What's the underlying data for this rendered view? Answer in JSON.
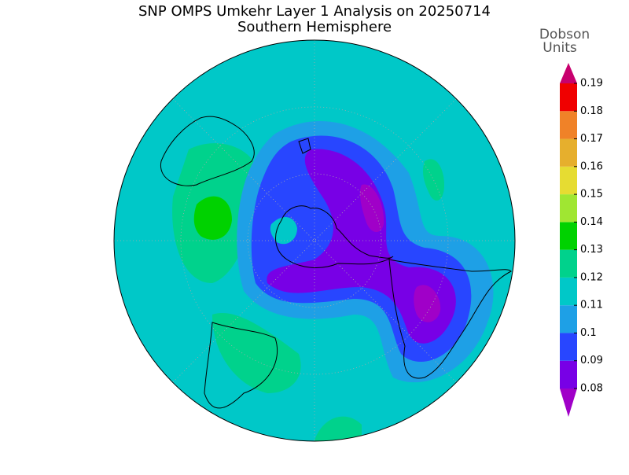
{
  "title": "SNP OMPS Umkehr Layer 1 Analysis on 20250714",
  "subtitle": "Southern Hemisphere",
  "colorbar": {
    "label_lines": [
      "Dobson",
      "Units"
    ],
    "ticks": [
      0.08,
      0.09,
      0.1,
      0.11,
      0.12,
      0.13,
      0.14,
      0.15,
      0.16,
      0.17,
      0.18,
      0.19
    ],
    "colors": [
      "#a000c8",
      "#7800e6",
      "#2846ff",
      "#1ea0e6",
      "#00c8c8",
      "#00d28c",
      "#00d200",
      "#a0e632",
      "#e6dc32",
      "#e6af2d",
      "#f08228",
      "#f00000",
      "#c8006e"
    ]
  }
}
